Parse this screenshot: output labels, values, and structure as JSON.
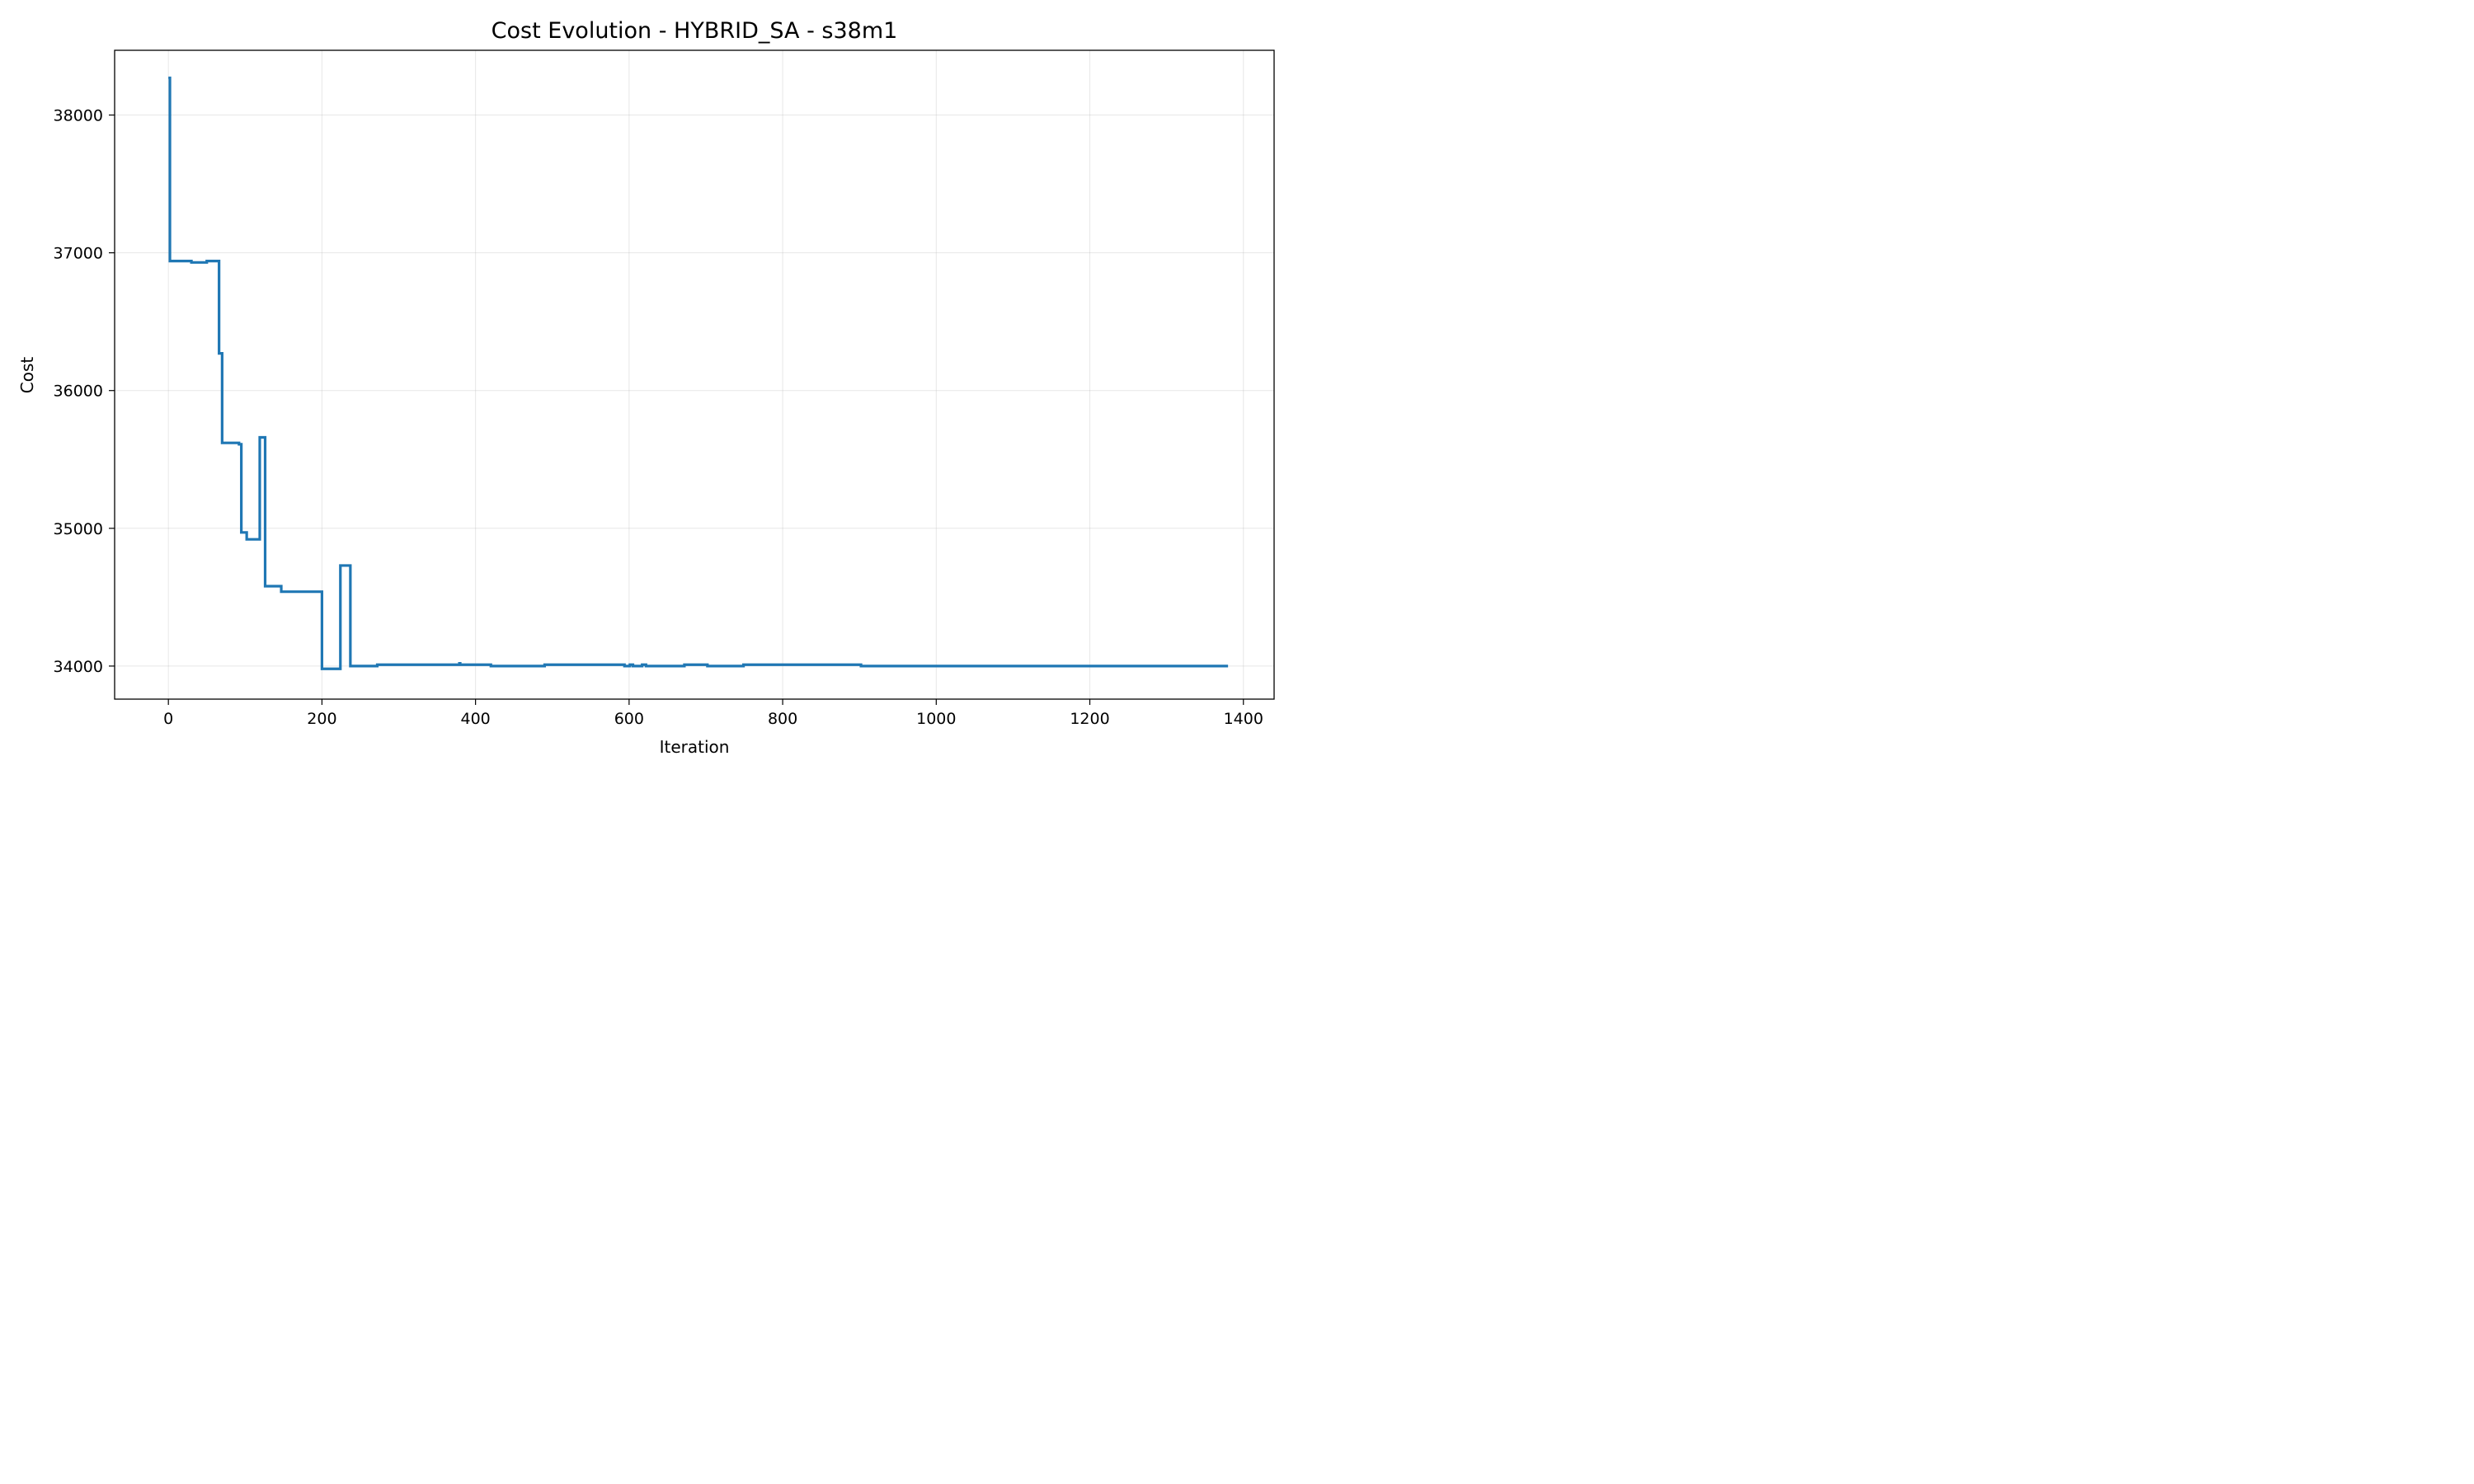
{
  "chart_data": {
    "type": "line",
    "title": "Cost Evolution - HYBRID_SA - s38m1",
    "xlabel": "Iteration",
    "ylabel": "Cost",
    "xlim": [
      -70,
      1440
    ],
    "ylim": [
      33760,
      38470
    ],
    "x_ticks": [
      0,
      200,
      400,
      600,
      800,
      1000,
      1200,
      1400
    ],
    "y_ticks": [
      34000,
      35000,
      36000,
      37000,
      38000
    ],
    "grid": true,
    "line_color": "#1f77b4",
    "series": [
      {
        "step": true,
        "points": [
          [
            0,
            38270
          ],
          [
            2,
            36940
          ],
          [
            28,
            36940
          ],
          [
            30,
            36930
          ],
          [
            48,
            36930
          ],
          [
            50,
            36940
          ],
          [
            64,
            36940
          ],
          [
            66,
            36270
          ],
          [
            68,
            36270
          ],
          [
            70,
            35620
          ],
          [
            90,
            35620
          ],
          [
            92,
            35610
          ],
          [
            93,
            35610
          ],
          [
            95,
            34970
          ],
          [
            100,
            34970
          ],
          [
            102,
            34920
          ],
          [
            117,
            34920
          ],
          [
            119,
            35660
          ],
          [
            124,
            35660
          ],
          [
            126,
            34580
          ],
          [
            145,
            34580
          ],
          [
            147,
            34540
          ],
          [
            198,
            34540
          ],
          [
            200,
            33980
          ],
          [
            222,
            33980
          ],
          [
            224,
            34730
          ],
          [
            235,
            34730
          ],
          [
            237,
            34000
          ],
          [
            270,
            34000
          ],
          [
            272,
            34010
          ],
          [
            378,
            34010
          ],
          [
            379,
            34020
          ],
          [
            380,
            34010
          ],
          [
            418,
            34010
          ],
          [
            420,
            34000
          ],
          [
            488,
            34000
          ],
          [
            490,
            34010
          ],
          [
            592,
            34010
          ],
          [
            594,
            34000
          ],
          [
            599,
            34000
          ],
          [
            601,
            34010
          ],
          [
            603,
            34010
          ],
          [
            605,
            34000
          ],
          [
            615,
            34000
          ],
          [
            617,
            34010
          ],
          [
            620,
            34010
          ],
          [
            622,
            34000
          ],
          [
            670,
            34000
          ],
          [
            672,
            34010
          ],
          [
            700,
            34010
          ],
          [
            702,
            34000
          ],
          [
            747,
            34000
          ],
          [
            749,
            34010
          ],
          [
            900,
            34010
          ],
          [
            902,
            34000
          ],
          [
            1380,
            34000
          ]
        ]
      }
    ]
  }
}
